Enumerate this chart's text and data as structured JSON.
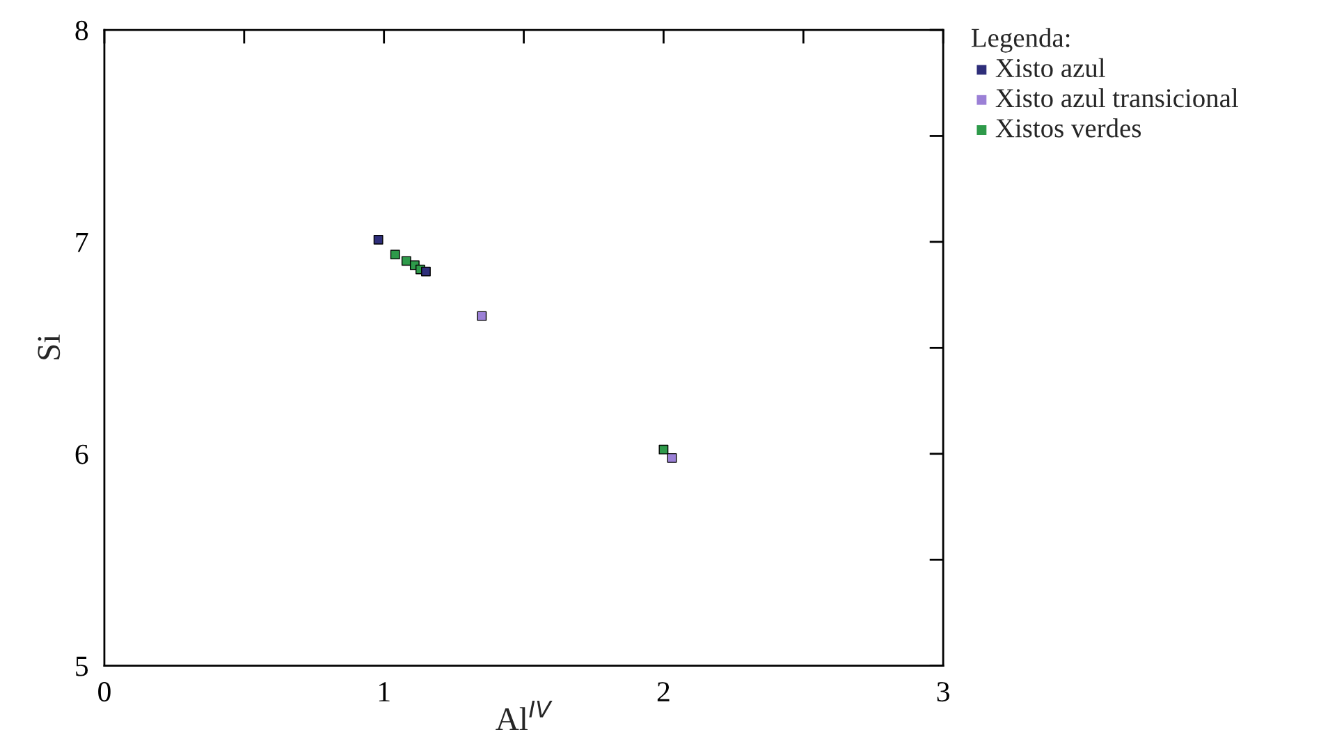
{
  "chart_data": {
    "type": "scatter",
    "xlabel": "Al$^{IV}$",
    "ylabel": "Si",
    "legend_title": "Legenda:",
    "legend": "top right",
    "marker": "square",
    "grid": false,
    "xlim": [
      0,
      3
    ],
    "ylim": [
      5,
      8
    ],
    "xticks": [
      0,
      {
        "value": 0.5,
        "label": null
      },
      1,
      {
        "value": 1.5,
        "label": null
      },
      2,
      {
        "value": 2.5,
        "label": null
      },
      3
    ],
    "yticks": [
      5,
      {
        "value": 5.5,
        "label": null
      },
      6,
      {
        "value": 6.5,
        "label": null
      },
      7,
      {
        "value": 7.5,
        "label": null
      },
      8
    ],
    "series": [
      {
        "name": "Xisto azul",
        "color": "#2e2e7a",
        "x": [
          0.98,
          1.15
        ],
        "values": [
          7.01,
          6.86
        ]
      },
      {
        "name": "Xisto azul transicional",
        "color": "#9b80d6",
        "x": [
          1.35,
          2.03
        ],
        "values": [
          6.65,
          5.98
        ]
      },
      {
        "name": "Xistos verdes",
        "color": "#2e9a4a",
        "x": [
          1.04,
          1.08,
          1.11,
          1.13,
          2.0
        ],
        "values": [
          6.94,
          6.91,
          6.89,
          6.87,
          6.02
        ]
      }
    ]
  }
}
